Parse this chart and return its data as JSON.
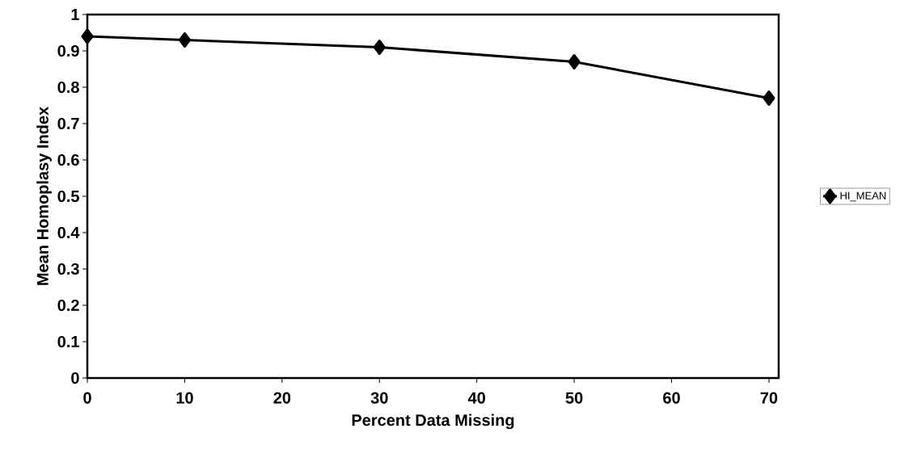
{
  "chart_data": {
    "type": "line",
    "xlabel": "Percent Data Missing",
    "ylabel": "Mean Homoplasy Index",
    "x": [
      0,
      10,
      30,
      50,
      70
    ],
    "series": [
      {
        "name": "HI_MEAN",
        "color": "#000000",
        "values": [
          0.94,
          0.93,
          0.91,
          0.87,
          0.77
        ]
      }
    ],
    "xlim": [
      0,
      71
    ],
    "ylim": [
      0,
      1
    ],
    "xticks": [
      0,
      10,
      20,
      30,
      40,
      50,
      60,
      70
    ],
    "yticks": [
      0,
      0.1,
      0.2,
      0.3,
      0.4,
      0.5,
      0.6,
      0.7,
      0.8,
      0.9,
      1
    ],
    "legend": "right",
    "marker": "diamond",
    "line_style": "solid"
  }
}
